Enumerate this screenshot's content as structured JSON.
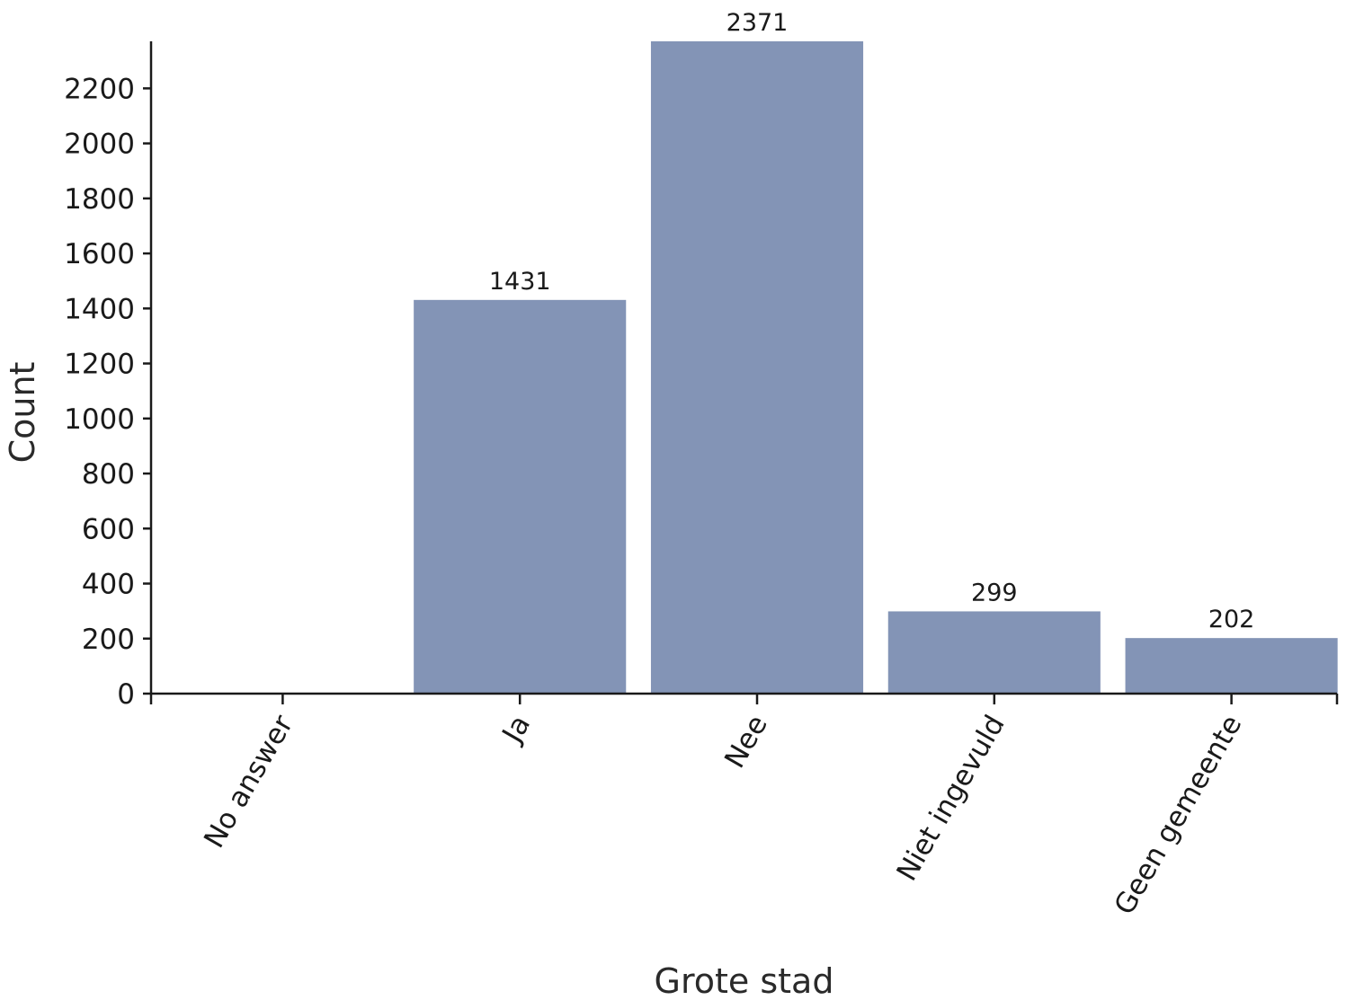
{
  "chart_data": {
    "type": "bar",
    "title": "",
    "xlabel": "Grote stad",
    "ylabel": "Count",
    "categories": [
      "No answer",
      "Ja",
      "Nee",
      "Niet ingevuld",
      "Geen gemeente"
    ],
    "values": [
      0,
      1431,
      2371,
      299,
      202
    ],
    "data_labels": [
      "",
      "1431",
      "2371",
      "299",
      "202"
    ],
    "ylim": [
      0,
      2371
    ],
    "yticks": [
      0,
      200,
      400,
      600,
      800,
      1000,
      1200,
      1400,
      1600,
      1800,
      2000,
      2200
    ],
    "grid": false,
    "legend": "none",
    "bar_color": "#8394b6",
    "axis_color": "#1a1a1a"
  }
}
